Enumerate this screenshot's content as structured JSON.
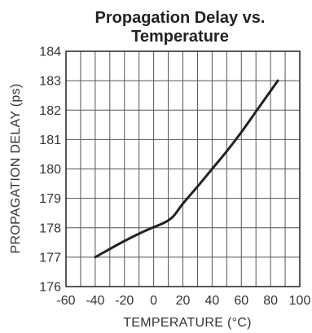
{
  "chart_data": {
    "type": "line",
    "title_lines": [
      "Propagation Delay vs.",
      "Temperature"
    ],
    "xlabel": "TEMPERATURE (°C)",
    "ylabel": "PROPAGATION DELAY (ps)",
    "xlim": [
      -60,
      100
    ],
    "ylim": [
      176,
      184
    ],
    "xticks": [
      -60,
      -40,
      -20,
      0,
      20,
      40,
      60,
      80,
      100
    ],
    "yticks": [
      176,
      177,
      178,
      179,
      180,
      181,
      182,
      183,
      184
    ],
    "x_minor_step": 10,
    "y_minor_step": 1,
    "grid": true,
    "series": [
      {
        "x": [
          -40,
          -30,
          -20,
          -10,
          0,
          5,
          10,
          14,
          20,
          30,
          40,
          50,
          60,
          70,
          80,
          85
        ],
        "y": [
          177.0,
          177.28,
          177.55,
          177.8,
          178.02,
          178.12,
          178.25,
          178.42,
          178.82,
          179.4,
          180.0,
          180.6,
          181.25,
          181.95,
          182.65,
          183.0
        ]
      }
    ],
    "colors": {
      "line": "#222222",
      "grid": "#555555",
      "frame": "#222222"
    }
  }
}
